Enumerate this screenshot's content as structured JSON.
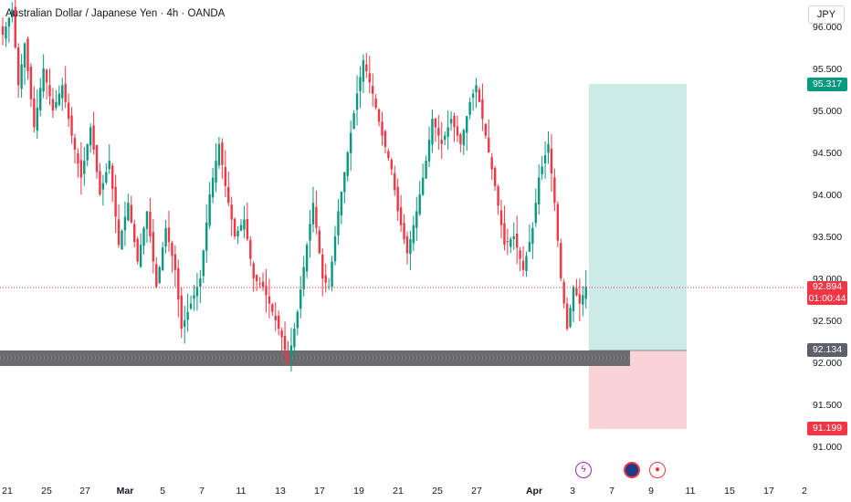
{
  "header": {
    "title": "Australian Dollar / Japanese Yen · 4h · OANDA"
  },
  "currency": "JPY",
  "price_axis": {
    "ticks": [
      "96.000",
      "95.500",
      "95.000",
      "94.500",
      "94.000",
      "93.500",
      "93.000",
      "92.500",
      "92.000",
      "91.500",
      "91.000"
    ]
  },
  "time_axis": {
    "ticks": [
      "21",
      "25",
      "27",
      "Mar",
      "5",
      "7",
      "11",
      "13",
      "17",
      "19",
      "21",
      "25",
      "27",
      "Apr",
      "3",
      "7",
      "9",
      "11",
      "15",
      "17",
      "2"
    ]
  },
  "tags": {
    "target": "95.317",
    "current": "92.894",
    "countdown": "01:00:44",
    "entry": "92.134",
    "stop": "91.199"
  },
  "colors": {
    "up": "#089981",
    "down": "#f23645",
    "target_zone": "#cdebe6",
    "stop_zone": "#fad3d6",
    "support_band": "#6b6b70",
    "up_tag": "#089981",
    "down_tag": "#f23645",
    "neutral_tag": "#5d606b"
  },
  "event_icons": [
    "lightning-icon",
    "flag-au-icon",
    "record-icon"
  ],
  "chart_data": {
    "type": "candlestick",
    "title": "Australian Dollar / Japanese Yen · 4h · OANDA",
    "ylim": [
      90.7,
      96.1
    ],
    "price_line": 92.894,
    "position": {
      "target": 95.317,
      "entry": 92.134,
      "stop": 91.199
    },
    "support_zone": [
      92.0,
      92.13
    ],
    "grid": false,
    "path": [
      [
        0,
        95.9
      ],
      [
        3,
        96.2
      ],
      [
        5,
        95.3
      ],
      [
        7,
        95.8
      ],
      [
        10,
        94.8
      ],
      [
        13,
        95.5
      ],
      [
        16,
        95.0
      ],
      [
        19,
        95.3
      ],
      [
        22,
        94.7
      ],
      [
        25,
        94.2
      ],
      [
        28,
        94.8
      ],
      [
        31,
        94.0
      ],
      [
        34,
        94.4
      ],
      [
        37,
        93.4
      ],
      [
        40,
        93.9
      ],
      [
        43,
        93.2
      ],
      [
        46,
        93.8
      ],
      [
        49,
        92.9
      ],
      [
        52,
        93.6
      ],
      [
        55,
        93.1
      ],
      [
        57,
        92.4
      ],
      [
        60,
        92.7
      ],
      [
        63,
        93.0
      ],
      [
        66,
        94.0
      ],
      [
        69,
        94.6
      ],
      [
        71,
        94.1
      ],
      [
        74,
        93.5
      ],
      [
        77,
        93.7
      ],
      [
        80,
        93.0
      ],
      [
        83,
        92.9
      ],
      [
        86,
        92.6
      ],
      [
        89,
        92.3
      ],
      [
        91,
        92.0
      ],
      [
        94,
        92.6
      ],
      [
        97,
        93.4
      ],
      [
        99,
        93.9
      ],
      [
        102,
        93.0
      ],
      [
        104,
        92.9
      ],
      [
        107,
        93.8
      ],
      [
        110,
        94.5
      ],
      [
        113,
        95.2
      ],
      [
        115,
        95.6
      ],
      [
        118,
        95.2
      ],
      [
        121,
        94.7
      ],
      [
        124,
        94.3
      ],
      [
        126,
        93.8
      ],
      [
        129,
        93.3
      ],
      [
        132,
        93.8
      ],
      [
        135,
        94.4
      ],
      [
        137,
        94.9
      ],
      [
        140,
        94.6
      ],
      [
        143,
        94.9
      ],
      [
        146,
        94.6
      ],
      [
        149,
        95.1
      ],
      [
        151,
        95.3
      ],
      [
        154,
        94.7
      ],
      [
        157,
        94.1
      ],
      [
        160,
        93.4
      ],
      [
        163,
        93.5
      ],
      [
        166,
        93.1
      ],
      [
        169,
        93.6
      ],
      [
        171,
        94.2
      ],
      [
        174,
        94.6
      ],
      [
        176,
        93.9
      ],
      [
        178,
        93.0
      ],
      [
        180,
        92.4
      ],
      [
        182,
        92.9
      ],
      [
        184,
        92.7
      ],
      [
        186,
        92.9
      ]
    ]
  }
}
